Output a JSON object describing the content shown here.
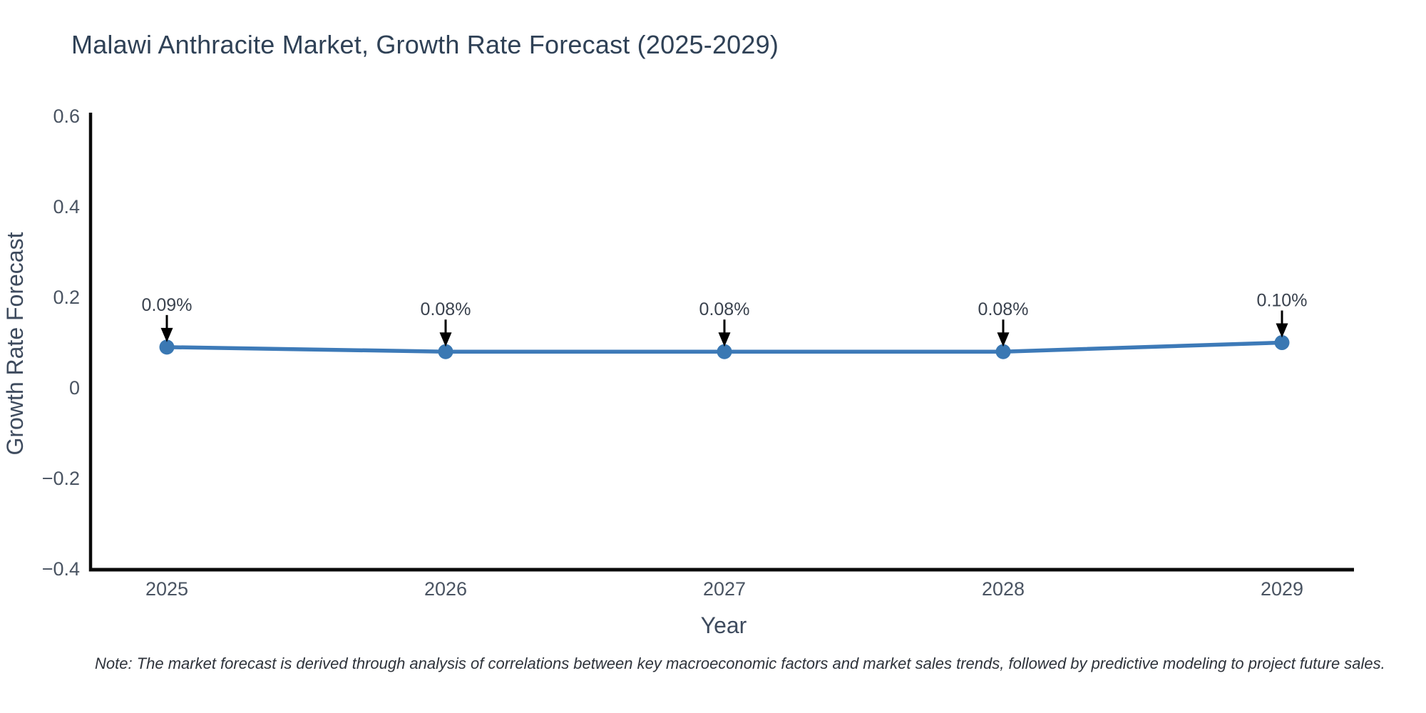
{
  "figure": {
    "background_color": "#ffffff"
  },
  "note": "Note: The market forecast is derived through analysis of correlations between key macroeconomic factors and market sales trends, followed by predictive modeling to project future sales.",
  "chart_data": {
    "type": "line",
    "title": "Malawi Anthracite Market, Growth Rate Forecast (2025-2029)",
    "xlabel": "Year",
    "ylabel": "Growth Rate Forecast",
    "x": [
      2025,
      2026,
      2027,
      2028,
      2029
    ],
    "x_tick_labels": [
      "2025",
      "2026",
      "2027",
      "2028",
      "2029"
    ],
    "series": [
      {
        "name": "Growth Rate Forecast",
        "values": [
          0.09,
          0.08,
          0.08,
          0.08,
          0.1
        ],
        "point_labels": [
          "0.09%",
          "0.08%",
          "0.08%",
          "0.08%",
          "0.10%"
        ]
      }
    ],
    "ylim": [
      -0.4,
      0.6
    ],
    "yticks": [
      0.6,
      0.4,
      0.2,
      0,
      -0.2,
      -0.4
    ],
    "ytick_labels": [
      "0.6",
      "0.4",
      "0.2",
      "0",
      "−0.2",
      "−0.4"
    ],
    "grid": false,
    "legend_position": "none",
    "annotations": "arrow-down-to-point",
    "colors": {
      "line": "#3d7ab8",
      "marker": "#3a78b3",
      "axis": "#0a0a0a",
      "tick_label": "#4a5462",
      "axis_title": "#3e4b5e",
      "annotation_text": "#3a424e",
      "annotation_arrow": "#000000",
      "title": "#2f4156",
      "note_text": "#2e333b"
    }
  }
}
